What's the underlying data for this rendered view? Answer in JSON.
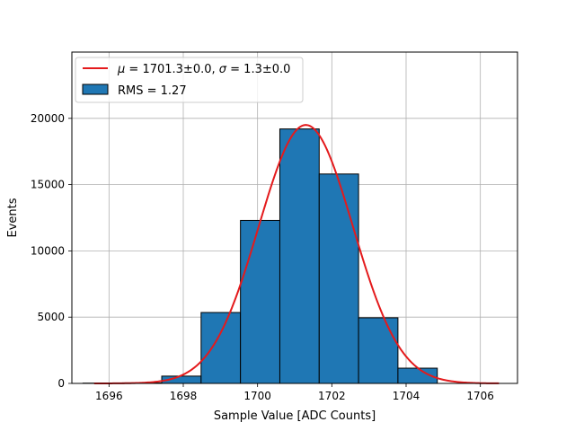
{
  "chart_data": {
    "type": "bar",
    "xlabel": "Sample Value [ADC Counts]",
    "ylabel": "Events",
    "xlim": [
      1695,
      1707
    ],
    "ylim": [
      0,
      25000
    ],
    "xticks": [
      1696,
      1698,
      1700,
      1702,
      1704,
      1706
    ],
    "xtick_labels": [
      "1696",
      "1698",
      "1700",
      "1702",
      "1704",
      "1706"
    ],
    "yticks": [
      0,
      5000,
      10000,
      15000,
      20000
    ],
    "ytick_labels": [
      "0",
      "5000",
      "10000",
      "15000",
      "20000"
    ],
    "grid": true,
    "legend_position": "top-left",
    "histogram": {
      "name": "RMS = 1.27",
      "bin_edges": [
        1695.3,
        1696.36,
        1697.42,
        1698.48,
        1699.54,
        1700.6,
        1701.66,
        1702.72,
        1703.78,
        1704.84
      ],
      "counts": [
        20,
        40,
        550,
        5350,
        12300,
        19200,
        15800,
        4950,
        1150
      ],
      "color": "#1f77b4"
    },
    "fit": {
      "name_parts": {
        "mu_symbol": "μ",
        "mu_text": " = 1701.3±0.0, ",
        "sigma_symbol": "σ",
        "sigma_text": " = 1.3±0.0"
      },
      "mu": 1701.3,
      "sigma": 1.27,
      "amplitude": 19500,
      "x_range": [
        1695.6,
        1706.5
      ],
      "color": "#e41a1c"
    }
  }
}
